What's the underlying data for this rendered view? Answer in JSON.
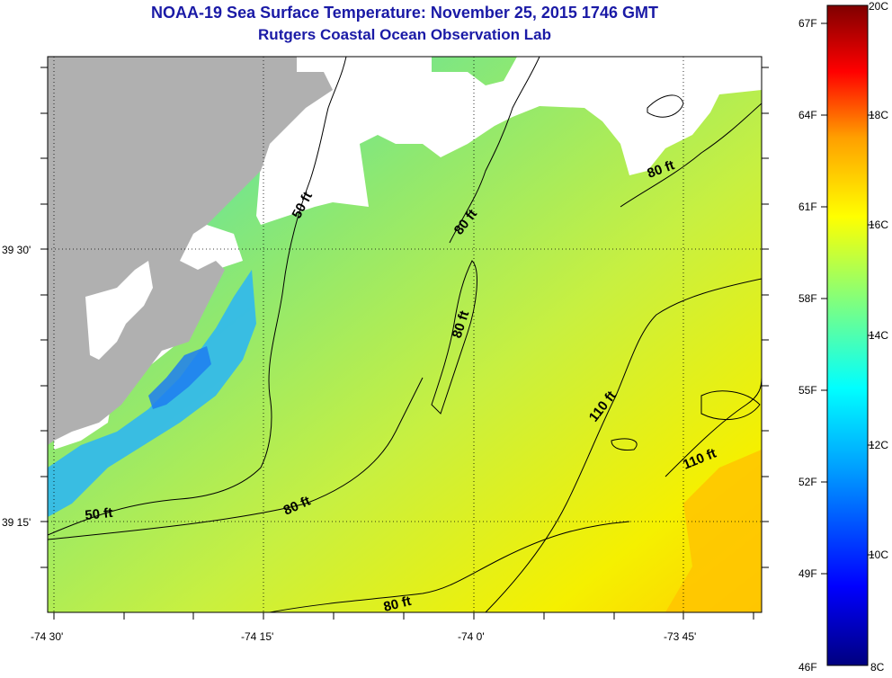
{
  "header": {
    "title": "NOAA-19 Sea Surface Temperature:  November 25, 2015 1746 GMT",
    "subtitle": "Rutgers Coastal Ocean Observation Lab"
  },
  "map": {
    "lat_labels": [
      "39 30'",
      "39 15'"
    ],
    "lon_labels": [
      "-74 30'",
      "-74 15'",
      "-74 0'",
      "-73 45'"
    ],
    "contour_labels": [
      "50 ft",
      "80 ft",
      "80 ft",
      "80 ft",
      "80 ft",
      "110 ft",
      "110 ft",
      "50 ft",
      "80 ft"
    ],
    "land_color": "#b0b0b0",
    "cloud_color": "#ffffff"
  },
  "colorbar": {
    "fahrenheit_labels": [
      "67F",
      "64F",
      "61F",
      "58F",
      "55F",
      "52F",
      "49F",
      "46F"
    ],
    "celsius_labels": [
      "20C",
      "18C",
      "16C",
      "14C",
      "12C",
      "10C",
      "8C"
    ],
    "range_c": [
      8,
      20
    ]
  },
  "colors": {
    "title": "#1a1aa6",
    "scale": [
      "#00007f",
      "#0000ff",
      "#00a0ff",
      "#00ffff",
      "#7fff7f",
      "#ffff00",
      "#ff9f00",
      "#ff0000",
      "#7f0000"
    ]
  }
}
